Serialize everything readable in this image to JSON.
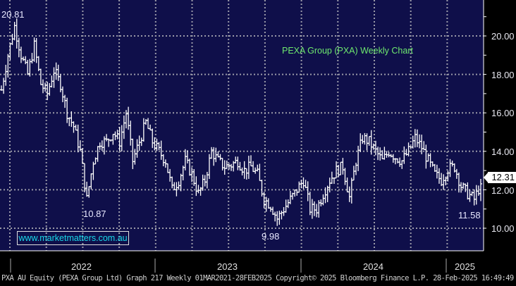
{
  "chart_data": {
    "type": "ohlc",
    "title": "PEXA Group (PXA) Weekly Chart",
    "ylim": [
      9.4,
      21.9
    ],
    "yticks": [
      "20.00",
      "18.00",
      "16.00",
      "14.00",
      "12.00",
      "10.00"
    ],
    "ytick_values": [
      20,
      18,
      16,
      14,
      12,
      10
    ],
    "xticks": [
      "2022",
      "2023",
      "2024",
      "2025"
    ],
    "last_price": "12.31",
    "annotations": {
      "high": "20.81",
      "low_2022": "10.87",
      "low_2023": "9.98",
      "low_2025": "11.58"
    },
    "closes": [
      17.2,
      19.0,
      20.5,
      19.0,
      18.0,
      19.5,
      17.5,
      17.0,
      18.2,
      17.5,
      16.0,
      15.3,
      14.0,
      11.5,
      13.5,
      14.5,
      14.5,
      15.0,
      14.5,
      16.0,
      13.5,
      14.5,
      15.5,
      14.5,
      14.0,
      13.5,
      12.0,
      12.5,
      13.5,
      12.8,
      11.8,
      12.5,
      14.0,
      13.5,
      13.2,
      13.3,
      13.5,
      13.0,
      13.2,
      12.8,
      11.5,
      11.2,
      10.5,
      11.0,
      11.5,
      12.0,
      12.5,
      11.0,
      11.0,
      11.8,
      12.5,
      13.0,
      13.2,
      11.6,
      13.5,
      14.7,
      14.5,
      14.0,
      13.5,
      14.0,
      13.7,
      13.5,
      14.0,
      14.7,
      14.2,
      13.5,
      12.8,
      12.5,
      13.1,
      13.2,
      12.2,
      11.8,
      11.5,
      12.31
    ],
    "grid": true
  },
  "watermark": "www.marketmatters.com.au",
  "footer": "PXA AU Equity (PEXA Group Ltd) Graph 217  Weekly 01MAR2021-28FEB2025  Copyright© 2025 Bloomberg Finance L.P.  28-Feb-2025 16:49:49",
  "colors": {
    "background": "#0f0f4a",
    "bars": "#ffffff",
    "grid": "#9a9aa8",
    "title": "#6ee86e",
    "watermark": "#18d8e8"
  }
}
